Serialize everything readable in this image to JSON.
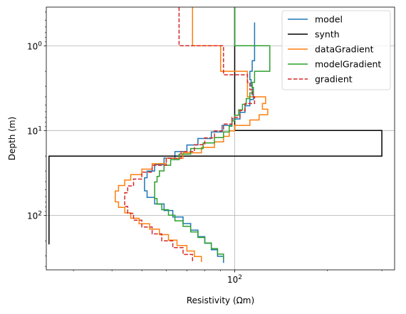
{
  "chart_data": {
    "type": "line",
    "title": "",
    "xlabel": "Resistivity (Ωm)",
    "ylabel": "Depth (m)",
    "x_scale": "log",
    "y_scale": "log",
    "y_inverted": true,
    "xlim": [
      24.5,
      330
    ],
    "ylim": [
      0.35,
      440
    ],
    "x_ticks": [
      {
        "value": 100,
        "label": "10²"
      }
    ],
    "y_ticks": [
      {
        "value": 1,
        "label": "10⁰"
      },
      {
        "value": 10,
        "label": "10¹"
      },
      {
        "value": 100,
        "label": "10²"
      }
    ],
    "grid": true,
    "legend": {
      "position": "top-right"
    },
    "series": [
      {
        "name": "model",
        "color": "#1f77b4",
        "style": "solid",
        "depth": [
          0.53,
          1.5,
          2,
          2.5,
          3,
          3.6,
          4.3,
          5.1,
          6.1,
          7.3,
          8.7,
          10.4,
          12.4,
          14.8,
          17.7,
          21.1,
          25.2,
          30.1,
          36,
          43,
          51.4,
          61.4,
          73.4,
          87.7,
          104.8,
          125.2,
          149.6,
          178.7,
          213.5,
          255.1,
          304.8,
          364.2
        ],
        "rho": [
          116,
          114,
          112,
          113,
          114,
          115,
          112,
          108,
          104,
          98,
          91,
          84,
          76,
          70,
          64,
          59,
          55,
          52,
          51,
          51,
          52,
          55,
          59,
          63,
          68,
          72,
          76,
          80,
          84,
          88,
          92
        ]
      },
      {
        "name": "synth",
        "color": "#000000",
        "style": "solid",
        "depth": [
          0.35,
          10,
          20,
          220
        ],
        "rho": [
          100,
          300,
          25
        ]
      },
      {
        "name": "dataGradient",
        "color": "#ff7f0e",
        "style": "solid",
        "depth": [
          0.35,
          1,
          2,
          4,
          4.8,
          5.6,
          6.5,
          7.5,
          8.7,
          10.1,
          11.7,
          13.6,
          15.8,
          18.3,
          21.2,
          24.6,
          28.5,
          33.1,
          38.4,
          44.5,
          51.6,
          59.8,
          69.4,
          80.5,
          93.4,
          108.3,
          125.6,
          145.7,
          169,
          196,
          227.4,
          263.8,
          306,
          355
        ],
        "rho": [
          73,
          90,
          110,
          126,
          123,
          128,
          120,
          112,
          100,
          96,
          92,
          86,
          78,
          68,
          60,
          54,
          50,
          46,
          44,
          42,
          41,
          41,
          42,
          44,
          46,
          49,
          53,
          57,
          61,
          65,
          70,
          74,
          78
        ]
      },
      {
        "name": "modelGradient",
        "color": "#2ca02c",
        "style": "solid",
        "depth": [
          0.35,
          1,
          2,
          2.3,
          2.7,
          3.1,
          3.6,
          4.2,
          4.9,
          5.7,
          6.6,
          7.7,
          8.9,
          10.4,
          12.1,
          14,
          16.3,
          19,
          22.1,
          25.7,
          29.9,
          34.7,
          40.4,
          47,
          54.6,
          63.5,
          73.8,
          85.8,
          99.8,
          116,
          134.9,
          156.9,
          182.4,
          212.1,
          246.6,
          286.8,
          333.5
        ],
        "rho": [
          100,
          130,
          116,
          116,
          114,
          115,
          112,
          109,
          106,
          103,
          100,
          98,
          96,
          92,
          86,
          79,
          72,
          66,
          62,
          59,
          57,
          56,
          55,
          55,
          55,
          56,
          58,
          61,
          64,
          68,
          72,
          76,
          80,
          84,
          88,
          92
        ]
      },
      {
        "name": "gradient",
        "color": "#d62728",
        "style": "dashed",
        "depth": [
          0.35,
          1,
          2.2,
          2.7,
          3.3,
          4,
          4.8,
          5.8,
          7,
          8.4,
          10.1,
          12.2,
          14.7,
          17.7,
          21.3,
          25.7,
          31,
          37.4,
          45,
          54.2,
          65.3,
          78.7,
          94.8,
          114.2,
          137.6,
          165.8,
          199.8,
          240.7,
          290,
          349
        ],
        "rho": [
          66,
          92,
          110,
          112,
          114,
          116,
          108,
          104,
          98,
          92,
          86,
          80,
          74,
          67,
          60,
          54,
          50,
          47,
          45,
          44,
          44,
          45,
          47,
          50,
          54,
          58,
          63,
          68,
          73
        ]
      }
    ]
  }
}
